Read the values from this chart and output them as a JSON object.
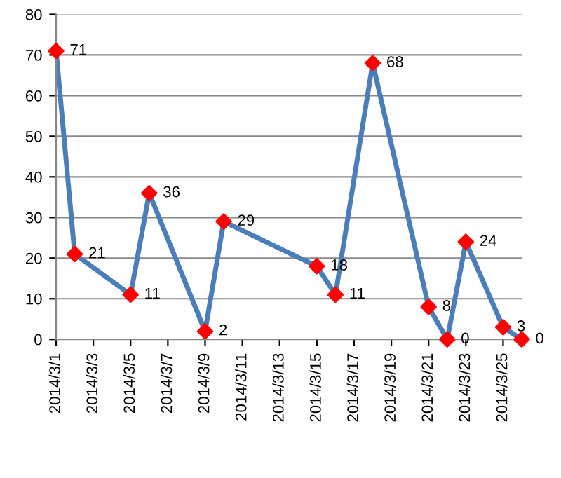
{
  "chart_data": {
    "type": "line",
    "x": [
      "2014-03-01",
      "2014-03-02",
      "2014-03-05",
      "2014-03-06",
      "2014-03-09",
      "2014-03-10",
      "2014-03-15",
      "2014-03-16",
      "2014-03-18",
      "2014-03-21",
      "2014-03-22",
      "2014-03-23",
      "2014-03-25",
      "2014-03-26"
    ],
    "series": [
      {
        "color": "#4a7ebb",
        "colors": [
          "#ff0000",
          "#ff0000",
          "#ff0000",
          "#ff0000",
          "#ff0000",
          "#ff0000",
          "#ff0000",
          "#ff0000",
          "#ff0000",
          "#ff0000",
          "#ff0000",
          "#ff0000",
          "#ff0000",
          "#ff0000"
        ],
        "values": [
          71,
          21,
          11,
          36,
          2,
          29,
          18,
          11,
          68,
          8,
          0,
          24,
          3,
          0
        ]
      }
    ],
    "xlim": [
      "2014-03-01",
      "2014-03-26"
    ],
    "xticks": [
      {
        "value": "2014-03-01",
        "label": "2014/3/1"
      },
      {
        "value": "2014-03-03",
        "label": "2014/3/3"
      },
      {
        "value": "2014-03-05",
        "label": "2014/3/5"
      },
      {
        "value": "2014-03-07",
        "label": "2014/3/7"
      },
      {
        "value": "2014-03-09",
        "label": "2014/3/9"
      },
      {
        "value": "2014-03-11",
        "label": "2014/3/11"
      },
      {
        "value": "2014-03-13",
        "label": "2014/3/13"
      },
      {
        "value": "2014-03-15",
        "label": "2014/3/15"
      },
      {
        "value": "2014-03-17",
        "label": "2014/3/17"
      },
      {
        "value": "2014-03-19",
        "label": "2014/3/19"
      },
      {
        "value": "2014-03-21",
        "label": "2014/3/21"
      },
      {
        "value": "2014-03-23",
        "label": "2014/3/23"
      },
      {
        "value": "2014-03-25",
        "label": "2014/3/25"
      }
    ],
    "ylim": [
      0,
      80
    ],
    "yticks": [
      0,
      10,
      20,
      30,
      40,
      50,
      60,
      70,
      80
    ],
    "grid": "y",
    "marker": "diamond",
    "line_style": "solid",
    "data_labels": true,
    "legend": false
  }
}
